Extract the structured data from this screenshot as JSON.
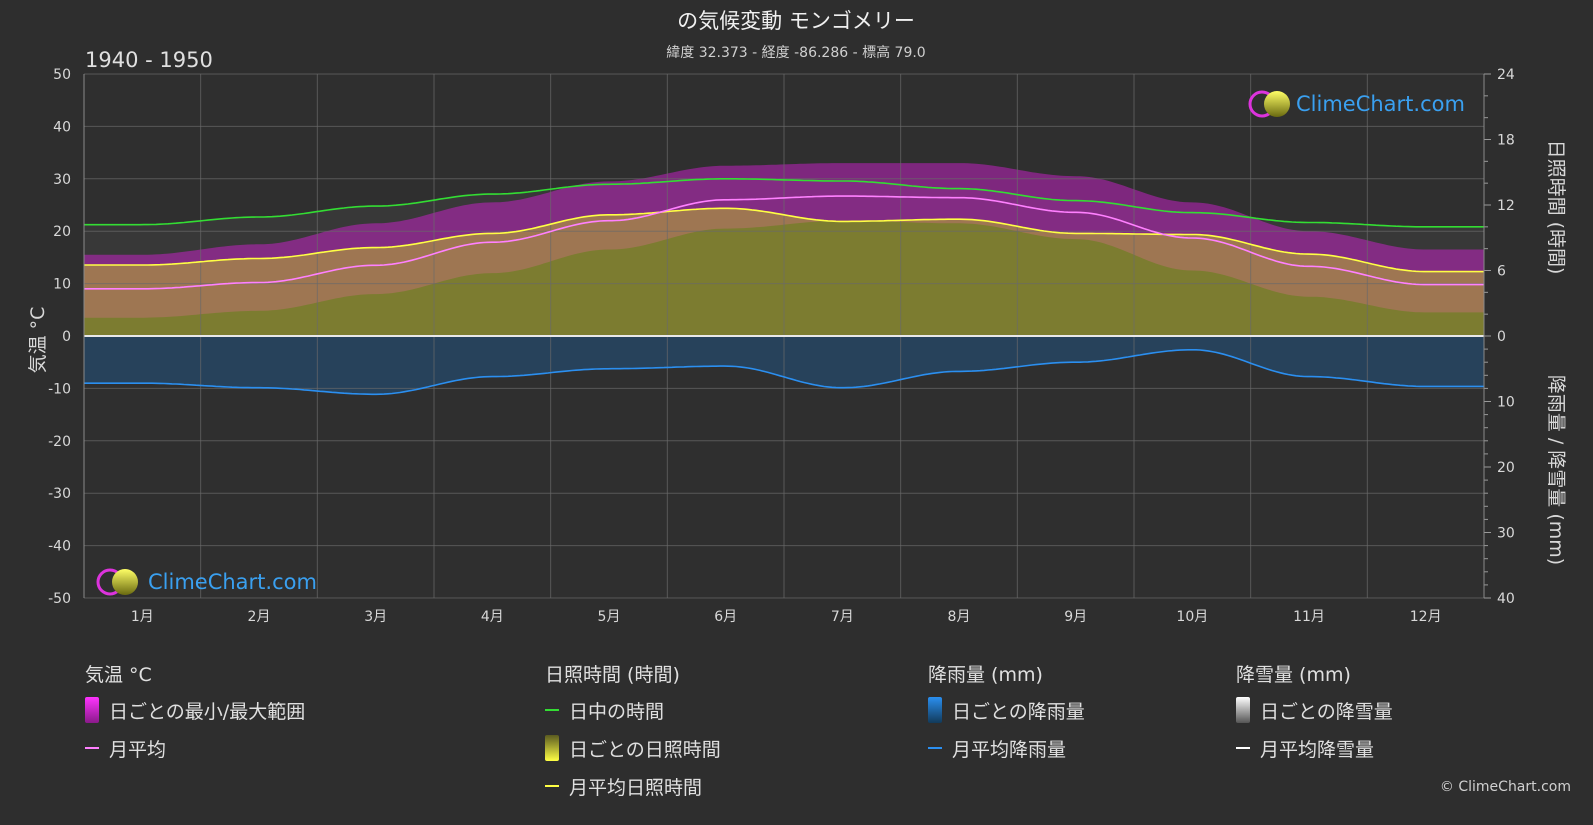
{
  "title": "の気候変動 モンゴメリー",
  "subtitle": "緯度 32.373 - 経度 -86.286 - 標高 79.0",
  "period": "1940 - 1950",
  "brand": "ClimeChart.com",
  "copyright": "© ClimeChart.com",
  "colors": {
    "background": "#2e2e2e",
    "temp_range": "#e020e0",
    "temp_mean": "#ff80ff",
    "daylight": "#33dd33",
    "sunshine_fill": "#b5b52a",
    "sunshine_mean": "#ffff44",
    "rain": "#2a7fd4",
    "rain_mean": "#2b8ff0",
    "snow": "#ffffff"
  },
  "chart_data": {
    "type": "line",
    "categories": [
      "1月",
      "2月",
      "3月",
      "4月",
      "5月",
      "6月",
      "7月",
      "8月",
      "9月",
      "10月",
      "11月",
      "12月"
    ],
    "y_left": {
      "label": "気温 °C",
      "range": [
        -50,
        50
      ],
      "ticks": [
        50,
        40,
        30,
        20,
        10,
        0,
        -10,
        -20,
        -30,
        -40,
        -50
      ]
    },
    "y_right_top": {
      "label": "日照時間 (時間)",
      "range": [
        0,
        24
      ],
      "ticks": [
        24,
        18,
        12,
        6,
        0
      ]
    },
    "y_right_bottom": {
      "label": "降雨量 / 降雪量 (mm)",
      "range": [
        0,
        40
      ],
      "ticks": [
        0,
        10,
        20,
        30,
        40
      ]
    },
    "grid": true,
    "series": [
      {
        "name": "日中の時間",
        "axis": "hours",
        "values": [
          10.2,
          10.9,
          11.9,
          13.0,
          13.9,
          14.4,
          14.2,
          13.5,
          12.4,
          11.3,
          10.4,
          10.0
        ]
      },
      {
        "name": "月平均日照時間",
        "axis": "hours",
        "values": [
          6.5,
          7.1,
          8.1,
          9.4,
          11.1,
          11.7,
          10.5,
          10.7,
          9.4,
          9.3,
          7.5,
          5.9
        ]
      },
      {
        "name": "月平均",
        "axis": "temp",
        "values": [
          9.0,
          10.2,
          13.5,
          17.9,
          22.0,
          26.0,
          26.7,
          26.4,
          23.6,
          18.7,
          13.3,
          9.8
        ]
      },
      {
        "name": "月平均降雨量",
        "axis": "rain",
        "values": [
          7.2,
          7.9,
          8.9,
          6.2,
          5.0,
          4.6,
          7.9,
          5.4,
          4.0,
          2.1,
          6.2,
          7.7
        ]
      },
      {
        "name": "月平均降雪量",
        "axis": "snow",
        "values": [
          0,
          0,
          0,
          0,
          0,
          0,
          0,
          0,
          0,
          0,
          0,
          0
        ]
      }
    ],
    "daily_temp_range": {
      "min": [
        3.5,
        4.8,
        8.0,
        12.0,
        16.5,
        20.5,
        22.0,
        21.5,
        18.5,
        12.5,
        7.5,
        4.5
      ],
      "max": [
        15.5,
        17.5,
        21.5,
        25.5,
        29.5,
        32.5,
        33.0,
        33.0,
        30.5,
        25.5,
        20.0,
        16.5
      ]
    }
  },
  "legend": {
    "temp": {
      "title": "気温 °C",
      "items": [
        "日ごとの最小/最大範囲",
        "月平均"
      ]
    },
    "sun": {
      "title": "日照時間 (時間)",
      "items": [
        "日中の時間",
        "日ごとの日照時間",
        "月平均日照時間"
      ]
    },
    "rain": {
      "title": "降雨量 (mm)",
      "items": [
        "日ごとの降雨量",
        "月平均降雨量"
      ]
    },
    "snow": {
      "title": "降雪量 (mm)",
      "items": [
        "日ごとの降雪量",
        "月平均降雪量"
      ]
    }
  }
}
